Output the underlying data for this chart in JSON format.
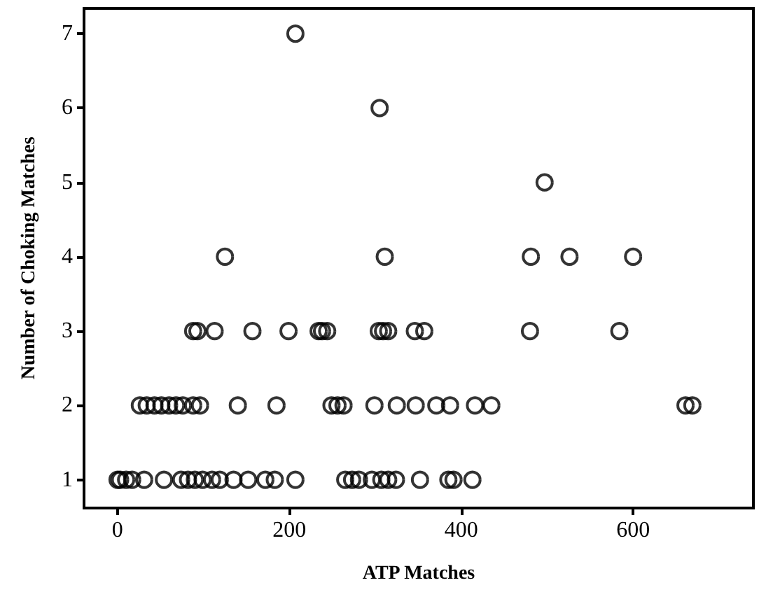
{
  "chart_data": {
    "type": "scatter",
    "xlabel": "ATP Matches",
    "ylabel": "Number of Choking Matches",
    "x": [
      207,
      305,
      497,
      125,
      311,
      481,
      526,
      600,
      88,
      93,
      113,
      157,
      199,
      234,
      238,
      244,
      304,
      309,
      315,
      346,
      357,
      480,
      584,
      26,
      34,
      43,
      51,
      60,
      68,
      76,
      88,
      96,
      140,
      185,
      249,
      256,
      263,
      299,
      325,
      347,
      371,
      387,
      416,
      435,
      661,
      669,
      0,
      3,
      10,
      17,
      31,
      54,
      74,
      82,
      90,
      99,
      110,
      119,
      135,
      152,
      172,
      183,
      207,
      265,
      273,
      281,
      296,
      307,
      315,
      324,
      352,
      385,
      391,
      413
    ],
    "values": [
      7,
      6,
      5,
      4,
      4,
      4,
      4,
      4,
      3,
      3,
      3,
      3,
      3,
      3,
      3,
      3,
      3,
      3,
      3,
      3,
      3,
      3,
      3,
      2,
      2,
      2,
      2,
      2,
      2,
      2,
      2,
      2,
      2,
      2,
      2,
      2,
      2,
      2,
      2,
      2,
      2,
      2,
      2,
      2,
      2,
      2,
      1,
      1,
      1,
      1,
      1,
      1,
      1,
      1,
      1,
      1,
      1,
      1,
      1,
      1,
      1,
      1,
      1,
      1,
      1,
      1,
      1,
      1,
      1,
      1,
      1,
      1,
      1,
      1
    ],
    "color": "#000000",
    "marker": "circle",
    "xlim": [
      -39,
      740
    ],
    "xticks": [
      0,
      200,
      400,
      600
    ],
    "ylim": [
      0.62,
      7.34
    ],
    "yticks": [
      1,
      2,
      3,
      4,
      5,
      6,
      7
    ]
  }
}
